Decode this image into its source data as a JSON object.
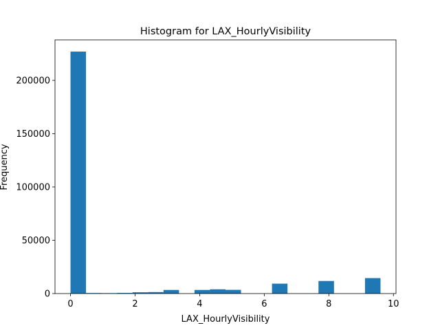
{
  "chart_data": {
    "type": "bar",
    "title": "Histogram for LAX_HourlyVisibility",
    "xlabel": "LAX_HourlyVisibility",
    "ylabel": "Frequency",
    "xlim": [
      -0.48,
      10.08
    ],
    "ylim": [
      0,
      238000
    ],
    "x_ticks": [
      0,
      2,
      4,
      6,
      8,
      10
    ],
    "y_ticks": [
      0,
      50000,
      100000,
      150000,
      200000
    ],
    "bar_color": "#1f77b4",
    "grid": false,
    "legend": "none",
    "bins": [
      {
        "x0": 0.0,
        "x1": 0.48,
        "value": 227000
      },
      {
        "x0": 0.48,
        "x1": 0.96,
        "value": 500
      },
      {
        "x0": 0.96,
        "x1": 1.44,
        "value": 400
      },
      {
        "x0": 1.44,
        "x1": 1.92,
        "value": 600
      },
      {
        "x0": 1.92,
        "x1": 2.4,
        "value": 1200
      },
      {
        "x0": 2.4,
        "x1": 2.88,
        "value": 1400
      },
      {
        "x0": 2.88,
        "x1": 3.36,
        "value": 3400
      },
      {
        "x0": 3.36,
        "x1": 3.84,
        "value": 0
      },
      {
        "x0": 3.84,
        "x1": 4.32,
        "value": 3400
      },
      {
        "x0": 4.32,
        "x1": 4.8,
        "value": 4000
      },
      {
        "x0": 4.8,
        "x1": 5.28,
        "value": 3500
      },
      {
        "x0": 5.28,
        "x1": 5.76,
        "value": 0
      },
      {
        "x0": 5.76,
        "x1": 6.24,
        "value": 0
      },
      {
        "x0": 6.24,
        "x1": 6.72,
        "value": 9300
      },
      {
        "x0": 6.72,
        "x1": 7.2,
        "value": 0
      },
      {
        "x0": 7.2,
        "x1": 7.68,
        "value": 0
      },
      {
        "x0": 7.68,
        "x1": 8.16,
        "value": 11800
      },
      {
        "x0": 8.16,
        "x1": 8.64,
        "value": 0
      },
      {
        "x0": 8.64,
        "x1": 9.12,
        "value": 0
      },
      {
        "x0": 9.12,
        "x1": 9.6,
        "value": 14500
      }
    ]
  }
}
